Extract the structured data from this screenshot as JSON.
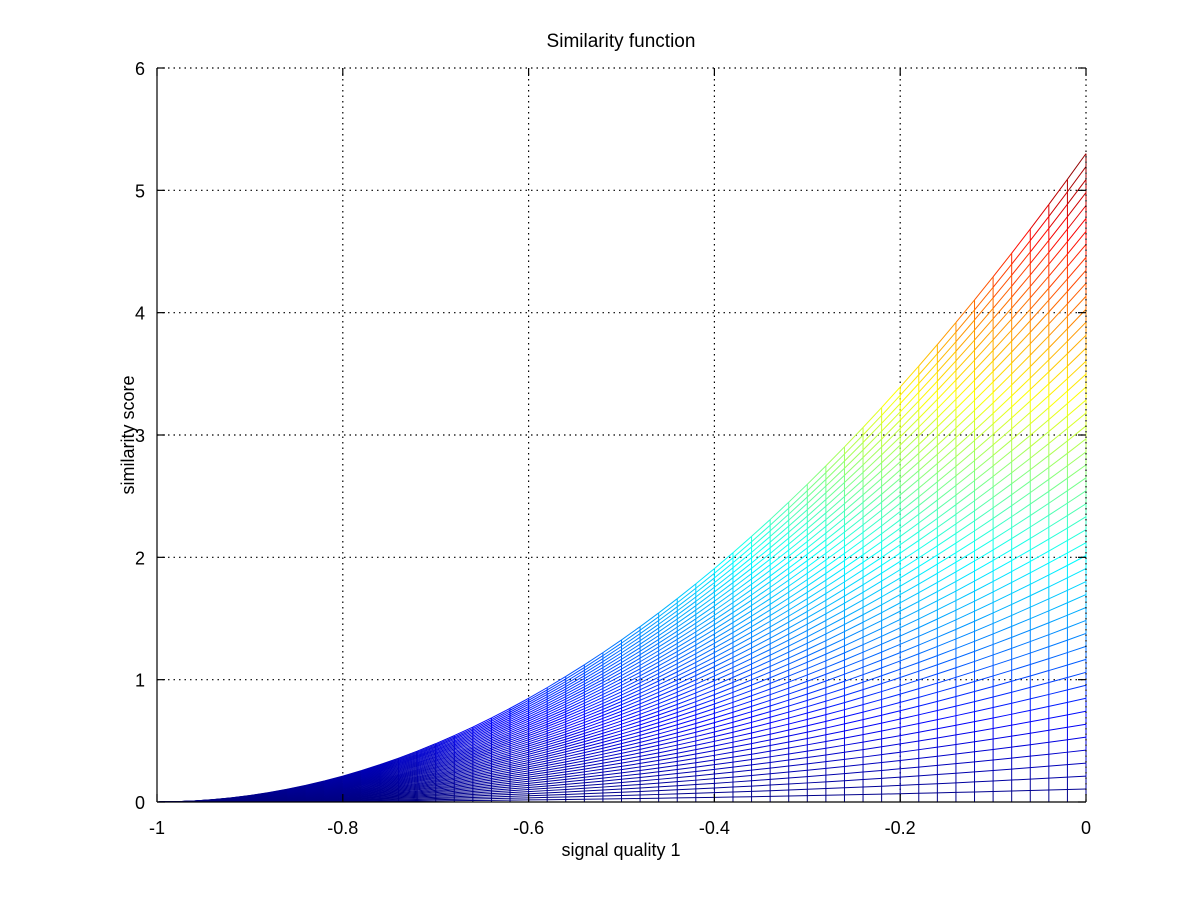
{
  "chart_data": {
    "type": "line",
    "title": "Similarity function",
    "xlabel": "signal quality 1",
    "ylabel": "similarity score",
    "xlim": [
      -1,
      0
    ],
    "ylim": [
      0,
      6
    ],
    "xticks": [
      -1,
      -0.8,
      -0.6,
      -0.4,
      -0.2,
      0
    ],
    "xtick_labels": [
      "-1",
      "-0.8",
      "-0.6",
      "-0.4",
      "-0.2",
      "0"
    ],
    "yticks": [
      0,
      1,
      2,
      3,
      4,
      5,
      6
    ],
    "ytick_labels": [
      "0",
      "1",
      "2",
      "3",
      "4",
      "5",
      "6"
    ],
    "grid": true,
    "legend": "none",
    "colormap": "jet",
    "surface": {
      "description_of_grid": "mesh of curves y = k * (x + 1)^2 for a family of scale factors k",
      "x_range": [
        -1,
        0
      ],
      "k_min": 0,
      "k_max": 5.3,
      "num_rows": 50,
      "num_cols": 51,
      "max_value_at_x0": 5.3
    }
  }
}
